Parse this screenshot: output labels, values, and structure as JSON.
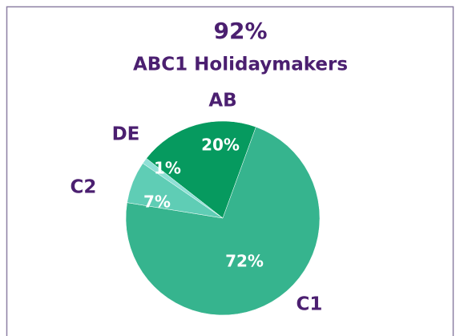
{
  "chart_data": {
    "type": "pie",
    "title": "92%",
    "subtitle": "ABC1 Holidaymakers",
    "categories": [
      "AB",
      "C1",
      "C2",
      "DE"
    ],
    "values": [
      20,
      72,
      7,
      1
    ],
    "value_labels": [
      "20%",
      "72%",
      "7%",
      "1%"
    ],
    "colors": [
      "#069a5f",
      "#36b48e",
      "#5fcdb5",
      "#8fe0d6"
    ]
  }
}
